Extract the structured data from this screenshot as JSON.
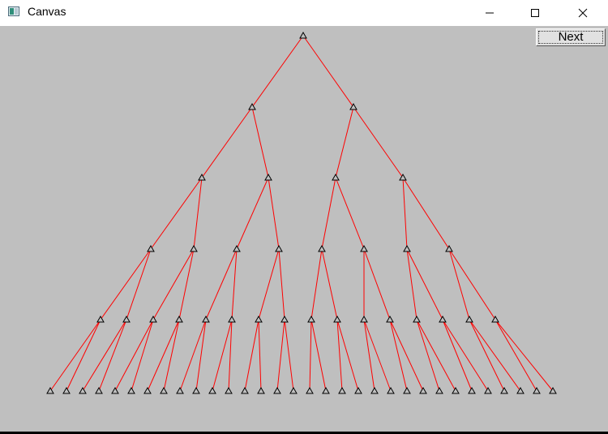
{
  "window": {
    "title": "Canvas"
  },
  "toolbar": {
    "next_label": "Next"
  },
  "tree": {
    "depth": 6,
    "edge_color": "#ff0000",
    "node_stroke": "#000000",
    "node_fill": "#bfbfbf"
  }
}
